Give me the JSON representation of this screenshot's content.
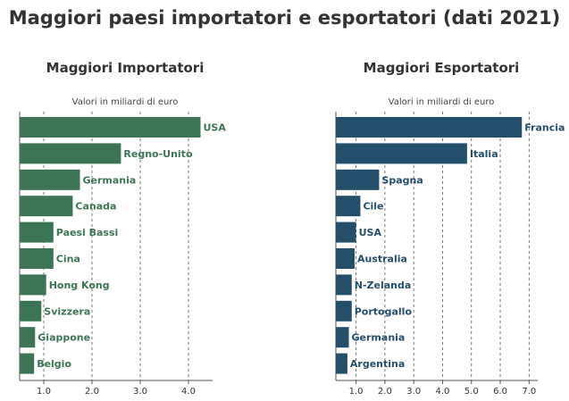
{
  "title": "Maggiori paesi importatori e esportatori (dati 2021)",
  "chart_data": [
    {
      "type": "bar",
      "orientation": "horizontal",
      "title": "Maggiori Importatori",
      "note": "Valori in miliardi di euro",
      "color": "#3c7555",
      "categories": [
        "USA",
        "Regno-Unito",
        "Germania",
        "Canada",
        "Paesi Bassi",
        "Cina",
        "Hong Kong",
        "Svizzera",
        "Giappone",
        "Belgio"
      ],
      "values": [
        4.25,
        2.6,
        1.75,
        1.6,
        1.2,
        1.2,
        1.05,
        0.95,
        0.82,
        0.8
      ],
      "xlim": [
        0.5,
        4.5
      ],
      "xticks": [
        1.0,
        2.0,
        3.0,
        4.0
      ],
      "xtick_labels": [
        "1.0",
        "2.0",
        "3.0",
        "4.0"
      ],
      "grid": "vertical dashed"
    },
    {
      "type": "bar",
      "orientation": "horizontal",
      "title": "Maggiori Esportatori",
      "note": "Valori in miliardi di euro",
      "color": "#234f6b",
      "categories": [
        "Francia",
        "Italia",
        "Spagna",
        "Cile",
        "USA",
        "Australia",
        "N-Zelanda",
        "Portogallo",
        "Germania",
        "Argentina"
      ],
      "values": [
        6.75,
        4.85,
        1.8,
        1.15,
        1.0,
        0.95,
        0.85,
        0.85,
        0.75,
        0.7
      ],
      "xlim": [
        0.3,
        7.3
      ],
      "xticks": [
        1.0,
        2.0,
        3.0,
        4.0,
        5.0,
        6.0,
        7.0
      ],
      "xtick_labels": [
        "1.0",
        "2.0",
        "3.0",
        "4.0",
        "5.0",
        "6.0",
        "7.0"
      ],
      "grid": "vertical dashed"
    }
  ]
}
